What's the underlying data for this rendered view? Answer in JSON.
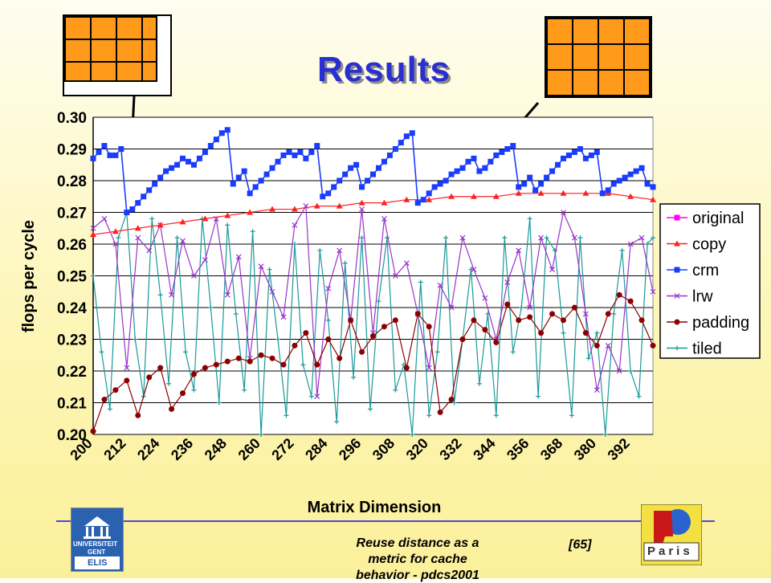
{
  "slide": {
    "title": "Results",
    "footer_text_1": "Reuse distance as a",
    "footer_text_2": "metric for cache",
    "footer_text_3": "behavior - pdcs2001",
    "page_number": "[65]",
    "logo_left_lines": [
      "UNIVERSITEIT",
      "GENT",
      "ELIS"
    ],
    "logo_right_text": "Paris",
    "colors": {
      "title": "#2a2fd0",
      "footer_line": "#4a4ad6",
      "tile": "#ff9a1a"
    }
  },
  "chart_data": {
    "type": "line",
    "xlabel": "Matrix Dimension",
    "ylabel": "flops per cycle",
    "ylim": [
      0.2,
      0.3
    ],
    "xlim": [
      200,
      400
    ],
    "y_ticks": [
      "0.20",
      "0.21",
      "0.22",
      "0.23",
      "0.24",
      "0.25",
      "0.26",
      "0.27",
      "0.28",
      "0.29",
      "0.30"
    ],
    "x_ticks": [
      "200",
      "212",
      "224",
      "236",
      "248",
      "260",
      "272",
      "284",
      "296",
      "308",
      "320",
      "332",
      "344",
      "356",
      "368",
      "380",
      "392"
    ],
    "grid": true,
    "legend_position": "right",
    "series": [
      {
        "name": "original",
        "color": "#ff00ff",
        "marker": "square",
        "points": []
      },
      {
        "name": "copy",
        "color": "#ff2020",
        "marker": "triangle",
        "x": [
          200,
          208,
          216,
          224,
          232,
          240,
          248,
          256,
          264,
          272,
          280,
          288,
          296,
          304,
          312,
          320,
          328,
          336,
          344,
          352,
          360,
          368,
          376,
          384,
          392,
          400
        ],
        "y": [
          0.263,
          0.264,
          0.265,
          0.266,
          0.267,
          0.268,
          0.269,
          0.27,
          0.271,
          0.271,
          0.272,
          0.272,
          0.273,
          0.273,
          0.274,
          0.274,
          0.275,
          0.275,
          0.275,
          0.276,
          0.276,
          0.276,
          0.276,
          0.276,
          0.275,
          0.274
        ]
      },
      {
        "name": "crm",
        "color": "#1a3cff",
        "marker": "square",
        "x": [
          200,
          202,
          204,
          206,
          208,
          210,
          212,
          214,
          216,
          218,
          220,
          222,
          224,
          226,
          228,
          230,
          232,
          234,
          236,
          238,
          240,
          242,
          244,
          246,
          248,
          250,
          252,
          254,
          256,
          258,
          260,
          262,
          264,
          266,
          268,
          270,
          272,
          274,
          276,
          278,
          280,
          282,
          284,
          286,
          288,
          290,
          292,
          294,
          296,
          298,
          300,
          302,
          304,
          306,
          308,
          310,
          312,
          314,
          316,
          318,
          320,
          322,
          324,
          326,
          328,
          330,
          332,
          334,
          336,
          338,
          340,
          342,
          344,
          346,
          348,
          350,
          352,
          354,
          356,
          358,
          360,
          362,
          364,
          366,
          368,
          370,
          372,
          374,
          376,
          378,
          380,
          382,
          384,
          386,
          388,
          390,
          392,
          394,
          396,
          398,
          400
        ],
        "y": [
          0.287,
          0.289,
          0.291,
          0.288,
          0.288,
          0.29,
          0.27,
          0.271,
          0.273,
          0.275,
          0.277,
          0.279,
          0.281,
          0.283,
          0.284,
          0.285,
          0.287,
          0.286,
          0.285,
          0.287,
          0.289,
          0.291,
          0.293,
          0.295,
          0.296,
          0.279,
          0.281,
          0.283,
          0.276,
          0.278,
          0.28,
          0.282,
          0.284,
          0.286,
          0.288,
          0.289,
          0.288,
          0.289,
          0.287,
          0.289,
          0.291,
          0.275,
          0.276,
          0.278,
          0.28,
          0.282,
          0.284,
          0.285,
          0.278,
          0.28,
          0.282,
          0.284,
          0.286,
          0.288,
          0.29,
          0.292,
          0.294,
          0.295,
          0.273,
          0.274,
          0.276,
          0.278,
          0.279,
          0.28,
          0.282,
          0.283,
          0.284,
          0.286,
          0.287,
          0.283,
          0.284,
          0.286,
          0.288,
          0.289,
          0.29,
          0.291,
          0.278,
          0.279,
          0.281,
          0.277,
          0.279,
          0.281,
          0.283,
          0.285,
          0.287,
          0.288,
          0.289,
          0.29,
          0.287,
          0.288,
          0.289,
          0.276,
          0.277,
          0.279,
          0.28,
          0.281,
          0.282,
          0.283,
          0.284,
          0.279,
          0.278
        ]
      },
      {
        "name": "lrw",
        "color": "#9933cc",
        "marker": "x",
        "x": [
          200,
          204,
          208,
          212,
          216,
          220,
          224,
          228,
          232,
          236,
          240,
          244,
          248,
          252,
          256,
          260,
          264,
          268,
          272,
          276,
          280,
          284,
          288,
          292,
          296,
          300,
          304,
          308,
          312,
          316,
          320,
          324,
          328,
          332,
          336,
          340,
          344,
          348,
          352,
          356,
          360,
          364,
          368,
          372,
          376,
          380,
          384,
          388,
          392,
          396,
          400
        ],
        "y": [
          0.265,
          0.268,
          0.26,
          0.221,
          0.262,
          0.258,
          0.266,
          0.244,
          0.261,
          0.25,
          0.255,
          0.268,
          0.244,
          0.256,
          0.224,
          0.253,
          0.245,
          0.237,
          0.266,
          0.272,
          0.212,
          0.246,
          0.258,
          0.236,
          0.271,
          0.232,
          0.268,
          0.25,
          0.254,
          0.238,
          0.221,
          0.247,
          0.24,
          0.262,
          0.252,
          0.243,
          0.23,
          0.248,
          0.258,
          0.24,
          0.262,
          0.252,
          0.27,
          0.262,
          0.238,
          0.214,
          0.228,
          0.22,
          0.26,
          0.262,
          0.245
        ]
      },
      {
        "name": "padding",
        "color": "#8b0000",
        "marker": "circle",
        "x": [
          200,
          204,
          208,
          212,
          216,
          220,
          224,
          228,
          232,
          236,
          240,
          244,
          248,
          252,
          256,
          260,
          264,
          268,
          272,
          276,
          280,
          284,
          288,
          292,
          296,
          300,
          304,
          308,
          312,
          316,
          320,
          324,
          328,
          332,
          336,
          340,
          344,
          348,
          352,
          356,
          360,
          364,
          368,
          372,
          376,
          380,
          384,
          388,
          392,
          396,
          400
        ],
        "y": [
          0.201,
          0.211,
          0.214,
          0.217,
          0.206,
          0.218,
          0.221,
          0.208,
          0.213,
          0.219,
          0.221,
          0.222,
          0.223,
          0.224,
          0.223,
          0.225,
          0.224,
          0.222,
          0.228,
          0.232,
          0.222,
          0.23,
          0.224,
          0.236,
          0.226,
          0.231,
          0.234,
          0.236,
          0.221,
          0.238,
          0.234,
          0.207,
          0.211,
          0.23,
          0.236,
          0.233,
          0.229,
          0.241,
          0.236,
          0.237,
          0.232,
          0.238,
          0.236,
          0.24,
          0.232,
          0.228,
          0.238,
          0.244,
          0.242,
          0.236,
          0.228
        ]
      },
      {
        "name": "tiled",
        "color": "#1a9999",
        "marker": "plus",
        "x": [
          200,
          203,
          206,
          209,
          212,
          215,
          218,
          221,
          224,
          227,
          230,
          233,
          236,
          239,
          242,
          245,
          248,
          251,
          254,
          257,
          260,
          263,
          266,
          269,
          272,
          275,
          278,
          281,
          284,
          287,
          290,
          293,
          296,
          299,
          302,
          305,
          308,
          311,
          314,
          317,
          320,
          323,
          326,
          329,
          332,
          335,
          338,
          341,
          344,
          347,
          350,
          353,
          356,
          359,
          362,
          365,
          368,
          371,
          374,
          377,
          380,
          383,
          386,
          389,
          392,
          395,
          398,
          400
        ],
        "y": [
          0.25,
          0.226,
          0.208,
          0.262,
          0.27,
          0.23,
          0.212,
          0.268,
          0.244,
          0.216,
          0.262,
          0.226,
          0.214,
          0.268,
          0.24,
          0.21,
          0.266,
          0.238,
          0.214,
          0.264,
          0.2,
          0.252,
          0.23,
          0.206,
          0.26,
          0.222,
          0.212,
          0.258,
          0.236,
          0.204,
          0.254,
          0.218,
          0.262,
          0.208,
          0.242,
          0.262,
          0.214,
          0.222,
          0.2,
          0.248,
          0.206,
          0.226,
          0.262,
          0.21,
          0.23,
          0.252,
          0.216,
          0.238,
          0.206,
          0.262,
          0.226,
          0.24,
          0.268,
          0.212,
          0.262,
          0.258,
          0.232,
          0.206,
          0.262,
          0.224,
          0.232,
          0.2,
          0.238,
          0.258,
          0.22,
          0.212,
          0.26,
          0.262
        ]
      }
    ]
  }
}
